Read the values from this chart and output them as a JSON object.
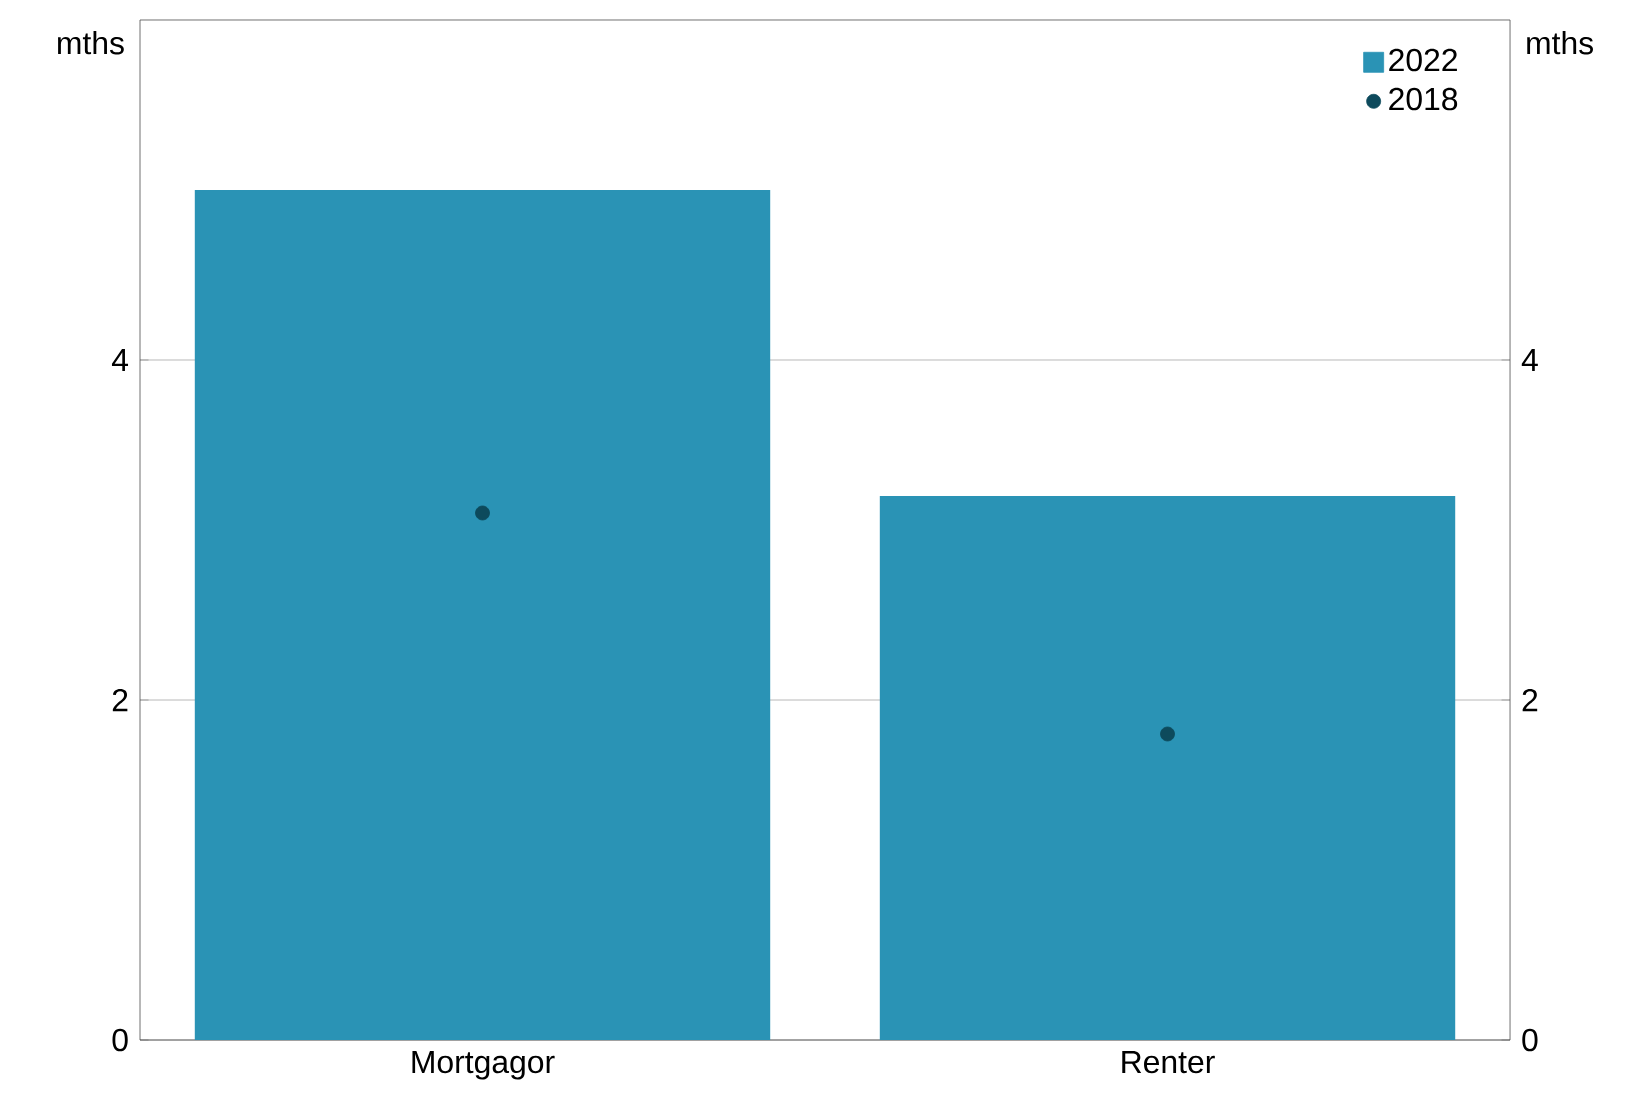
{
  "chart_data": {
    "type": "bar",
    "categories": [
      "Mortgagor",
      "Renter"
    ],
    "series": [
      {
        "name": "2022",
        "color": "#2a93b5",
        "values": [
          5.0,
          3.2
        ]
      },
      {
        "name": "2018",
        "type": "scatter",
        "color": "#0d4a5c",
        "values": [
          3.1,
          1.8
        ]
      }
    ],
    "ylabel": "mths",
    "y2label": "mths",
    "ylim": [
      0,
      6
    ],
    "yticks": [
      0,
      2,
      4
    ],
    "y2lim": [
      0,
      6
    ],
    "y2ticks": [
      0,
      2,
      4
    ],
    "grid": "y",
    "legend": "top right",
    "marker": "circle"
  }
}
